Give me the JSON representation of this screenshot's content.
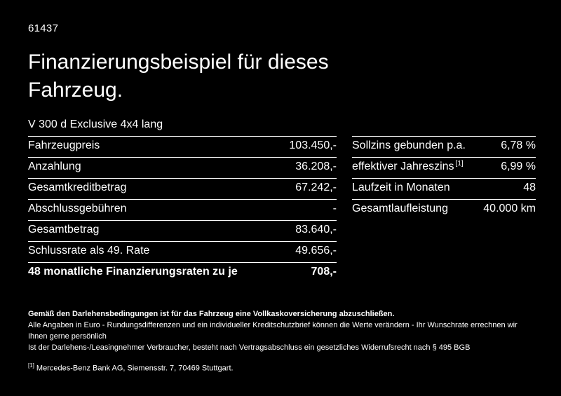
{
  "page": {
    "code": "61437",
    "title": "Finanzierungsbeispiel für dieses Fahrzeug.",
    "vehicle": "V 300 d Exclusive 4x4 lang"
  },
  "finance_table": {
    "rows": [
      {
        "label": "Fahrzeugpreis",
        "value": "103.450,-"
      },
      {
        "label": "Anzahlung",
        "value": "36.208,-"
      },
      {
        "label": "Gesamtkreditbetrag",
        "value": "67.242,-"
      },
      {
        "label": "Abschlussgebühren",
        "value": "-"
      },
      {
        "label": "Gesamtbetrag",
        "value": "83.640,-"
      },
      {
        "label": "Schlussrate als 49. Rate",
        "value": "49.656,-"
      },
      {
        "label": "48 monatliche Finanzierungsraten zu je",
        "value": "708,-"
      }
    ]
  },
  "conditions_table": {
    "rows": [
      {
        "label": "Sollzins gebunden p.a.",
        "sup": "",
        "value": "6,78 %"
      },
      {
        "label": "effektiver Jahreszins",
        "sup": "[1]",
        "value": "6,99 %"
      },
      {
        "label": "Laufzeit in Monaten",
        "sup": "",
        "value": "48"
      },
      {
        "label": "Gesamtlaufleistung",
        "sup": "",
        "value": "40.000 km"
      }
    ]
  },
  "footer": {
    "line1": "Gemäß den Darlehensbedingungen ist für das Fahrzeug eine Vollkaskoversicherung abzuschließen.",
    "line2": "Alle Angaben in Euro - Rundungsdifferenzen und ein individueller Kreditschutzbrief können die Werte verändern - Ihr Wunschrate errechnen wir Ihnen gerne persönlich",
    "line3": "Ist der Darlehens-/Leasingnehmer Verbraucher, besteht nach Vertragsabschluss ein gesetzliches Widerrufsrecht nach § 495 BGB",
    "footnote_marker": "[1]",
    "footnote_text": "Mercedes-Benz Bank AG, Siemensstr. 7, 70469 Stuttgart."
  },
  "colors": {
    "background": "#000000",
    "text": "#ffffff",
    "divider": "#ffffff"
  }
}
